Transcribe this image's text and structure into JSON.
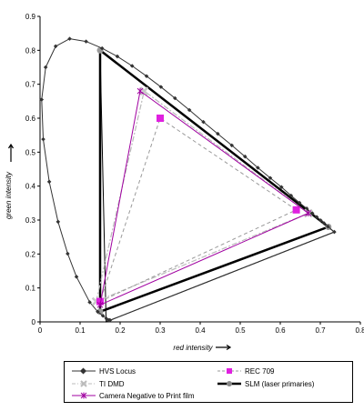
{
  "chart_data": {
    "type": "scatter",
    "xlabel": "red intensity",
    "ylabel": "green intensity",
    "xlim": [
      0,
      0.8
    ],
    "ylim": [
      0,
      0.9
    ],
    "x_ticks": [
      "0",
      "0.1",
      "0.2",
      "0.3",
      "0.4",
      "0.5",
      "0.6",
      "0.7",
      "0.8"
    ],
    "y_ticks": [
      "0",
      "0.1",
      "0.2",
      "0.3",
      "0.4",
      "0.5",
      "0.6",
      "0.7",
      "0.8",
      "0.9"
    ],
    "legend_position": "bottom",
    "series": [
      {
        "name": "HVS Locus",
        "color": "#333333",
        "marker": "diamond",
        "line": "solid",
        "points": [
          [
            0.175,
            0.005
          ],
          [
            0.173,
            0.005
          ],
          [
            0.171,
            0.005
          ],
          [
            0.166,
            0.009
          ],
          [
            0.157,
            0.018
          ],
          [
            0.144,
            0.03
          ],
          [
            0.124,
            0.058
          ],
          [
            0.091,
            0.133
          ],
          [
            0.069,
            0.201
          ],
          [
            0.045,
            0.295
          ],
          [
            0.023,
            0.413
          ],
          [
            0.008,
            0.538
          ],
          [
            0.004,
            0.655
          ],
          [
            0.014,
            0.75
          ],
          [
            0.039,
            0.812
          ],
          [
            0.074,
            0.834
          ],
          [
            0.115,
            0.826
          ],
          [
            0.155,
            0.806
          ],
          [
            0.193,
            0.782
          ],
          [
            0.23,
            0.754
          ],
          [
            0.266,
            0.724
          ],
          [
            0.302,
            0.692
          ],
          [
            0.337,
            0.659
          ],
          [
            0.373,
            0.624
          ],
          [
            0.408,
            0.589
          ],
          [
            0.444,
            0.554
          ],
          [
            0.479,
            0.52
          ],
          [
            0.512,
            0.487
          ],
          [
            0.544,
            0.454
          ],
          [
            0.575,
            0.424
          ],
          [
            0.603,
            0.397
          ],
          [
            0.627,
            0.372
          ],
          [
            0.648,
            0.351
          ],
          [
            0.666,
            0.334
          ],
          [
            0.68,
            0.32
          ],
          [
            0.691,
            0.309
          ],
          [
            0.701,
            0.299
          ],
          [
            0.709,
            0.291
          ],
          [
            0.719,
            0.281
          ],
          [
            0.735,
            0.265
          ],
          [
            0.175,
            0.005
          ]
        ]
      },
      {
        "name": "REC 709",
        "color": "#9a9a9a",
        "marker": "square",
        "marker_color": "#e020e0",
        "line": "dashed",
        "points": [
          [
            0.64,
            0.33
          ],
          [
            0.3,
            0.6
          ],
          [
            0.15,
            0.06
          ],
          [
            0.64,
            0.33
          ]
        ]
      },
      {
        "name": "TI DMD",
        "color": "#bbbbbb",
        "marker": "cross",
        "line": "dashdot",
        "points": [
          [
            0.67,
            0.32
          ],
          [
            0.26,
            0.68
          ],
          [
            0.14,
            0.06
          ],
          [
            0.67,
            0.32
          ]
        ]
      },
      {
        "name": "SLM (laser primaries)",
        "color": "#000000",
        "marker": "circle",
        "line": "thick",
        "points": [
          [
            0.72,
            0.28
          ],
          [
            0.15,
            0.8
          ],
          [
            0.15,
            0.03
          ],
          [
            0.72,
            0.28
          ]
        ]
      },
      {
        "name": "Camera Negative to Print film",
        "color": "#a000a0",
        "marker": "asterisk",
        "line": "solid",
        "points": [
          [
            0.67,
            0.32
          ],
          [
            0.25,
            0.68
          ],
          [
            0.15,
            0.05
          ],
          [
            0.67,
            0.32
          ]
        ]
      }
    ],
    "outer_triangle": {
      "color": "#000000",
      "points": [
        [
          0.735,
          0.265
        ],
        [
          0.15,
          0.8
        ],
        [
          0.165,
          0.0
        ],
        [
          0.735,
          0.265
        ]
      ]
    }
  },
  "legend": {
    "items": [
      {
        "key": "hvs",
        "label": "HVS Locus"
      },
      {
        "key": "rec709",
        "label": "REC 709"
      },
      {
        "key": "tidmd",
        "label": "TI DMD"
      },
      {
        "key": "slm",
        "label": "SLM (laser primaries)"
      },
      {
        "key": "camneg",
        "label": "Camera Negative to Print film"
      }
    ]
  }
}
